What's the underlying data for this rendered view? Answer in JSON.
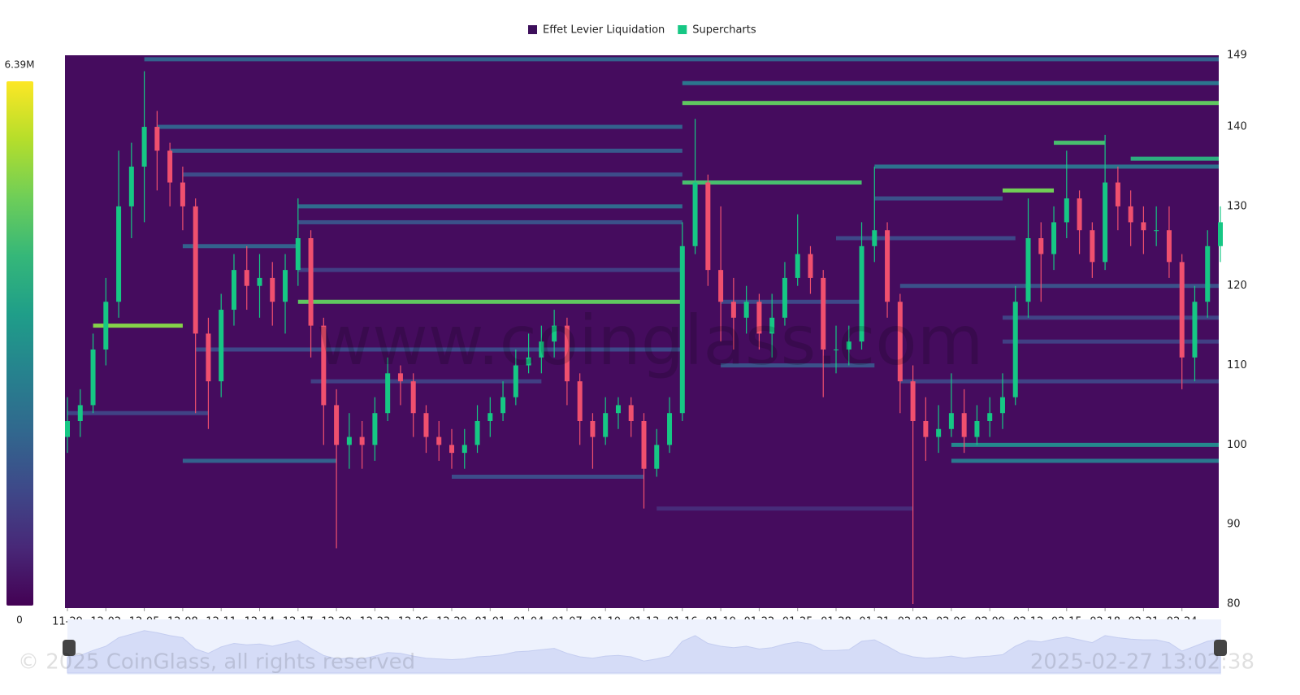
{
  "chart_data": {
    "type": "liquidation-heatmap",
    "legend": [
      {
        "name": "Effet Levier Liquidation",
        "color": "#3d0f5b"
      },
      {
        "name": "Supercharts",
        "color": "#16c784"
      }
    ],
    "watermark": "www.coinglass.com",
    "footer_left": "© 2025 CoinGlass, all rights reserved",
    "footer_right": "2025-02-27 13:02:38",
    "colorbar": {
      "min": 0,
      "max": {
        "value": 6390000,
        "label": "6.39M"
      }
    },
    "x": [
      "11-29",
      "11-30",
      "12-01",
      "12-02",
      "12-03",
      "12-04",
      "12-05",
      "12-06",
      "12-07",
      "12-08",
      "12-09",
      "12-10",
      "12-11",
      "12-12",
      "12-13",
      "12-14",
      "12-15",
      "12-16",
      "12-17",
      "12-18",
      "12-19",
      "12-20",
      "12-21",
      "12-22",
      "12-23",
      "12-24",
      "12-25",
      "12-26",
      "12-27",
      "12-28",
      "12-29",
      "12-30",
      "12-31",
      "01-01",
      "01-02",
      "01-03",
      "01-04",
      "01-05",
      "01-06",
      "01-07",
      "01-08",
      "01-09",
      "01-10",
      "01-11",
      "01-12",
      "01-13",
      "01-14",
      "01-15",
      "01-16",
      "01-17",
      "01-18",
      "01-19",
      "01-20",
      "01-21",
      "01-22",
      "01-23",
      "01-24",
      "01-25",
      "01-26",
      "01-27",
      "01-28",
      "01-29",
      "01-30",
      "01-31",
      "02-01",
      "02-02",
      "02-03",
      "02-04",
      "02-05",
      "02-06",
      "02-07",
      "02-08",
      "02-09",
      "02-10",
      "02-11",
      "02-12",
      "02-13",
      "02-14",
      "02-15",
      "02-16",
      "02-17",
      "02-18",
      "02-19",
      "02-20",
      "02-21",
      "02-22",
      "02-23",
      "02-24",
      "02-25",
      "02-26",
      "02-27"
    ],
    "xticks": [
      "11-29",
      "12-02",
      "12-05",
      "12-08",
      "12-11",
      "12-14",
      "12-17",
      "12-20",
      "12-23",
      "12-26",
      "12-29",
      "01-01",
      "01-04",
      "01-07",
      "01-10",
      "01-13",
      "01-16",
      "01-19",
      "01-22",
      "01-25",
      "01-28",
      "01-31",
      "02-03",
      "02-06",
      "02-09",
      "02-12",
      "02-15",
      "02-18",
      "02-21",
      "02-24"
    ],
    "ylim": [
      80,
      149
    ],
    "yticks": [
      80,
      90,
      100,
      110,
      120,
      130,
      140,
      149
    ],
    "up_color": "#16c784",
    "down_color": "#f0506e",
    "open": [
      101,
      103,
      105,
      112,
      118,
      130,
      135,
      140,
      137,
      133,
      130,
      114,
      108,
      117,
      122,
      120,
      121,
      118,
      122,
      126,
      115,
      105,
      100,
      101,
      100,
      104,
      109,
      108,
      104,
      101,
      100,
      99,
      100,
      103,
      104,
      106,
      110,
      111,
      113,
      115,
      108,
      103,
      101,
      104,
      105,
      103,
      97,
      100,
      104,
      125,
      133,
      122,
      118,
      116,
      118,
      114,
      116,
      121,
      124,
      121,
      112,
      112,
      113,
      125,
      127,
      118,
      108,
      103,
      101,
      102,
      104,
      101,
      103,
      104,
      106,
      118,
      126,
      124,
      128,
      131,
      127,
      123,
      133,
      130,
      128,
      127,
      127,
      123,
      111,
      118,
      125
    ],
    "high": [
      106,
      107,
      114,
      121,
      137,
      138,
      147,
      142,
      138,
      135,
      131,
      116,
      119,
      124,
      125,
      124,
      123,
      124,
      131,
      127,
      116,
      107,
      104,
      103,
      106,
      111,
      110,
      109,
      105,
      103,
      102,
      102,
      105,
      106,
      108,
      112,
      114,
      115,
      117,
      116,
      109,
      104,
      106,
      106,
      106,
      104,
      102,
      106,
      128,
      141,
      134,
      130,
      121,
      120,
      119,
      119,
      123,
      129,
      125,
      122,
      115,
      115,
      128,
      135,
      128,
      119,
      110,
      106,
      105,
      109,
      107,
      105,
      106,
      109,
      120,
      131,
      128,
      130,
      137,
      132,
      128,
      139,
      135,
      132,
      130,
      130,
      130,
      124,
      120,
      127,
      130
    ],
    "low": [
      99,
      101,
      104,
      110,
      116,
      126,
      128,
      132,
      130,
      127,
      104,
      102,
      106,
      115,
      117,
      116,
      115,
      114,
      120,
      111,
      100,
      87,
      97,
      97,
      98,
      103,
      105,
      101,
      99,
      98,
      97,
      97,
      99,
      101,
      103,
      105,
      109,
      109,
      111,
      105,
      100,
      97,
      100,
      102,
      101,
      92,
      96,
      99,
      103,
      124,
      120,
      113,
      112,
      114,
      112,
      111,
      115,
      120,
      119,
      106,
      109,
      110,
      112,
      123,
      116,
      104,
      80,
      98,
      99,
      101,
      99,
      100,
      101,
      102,
      105,
      116,
      118,
      122,
      126,
      124,
      121,
      122,
      127,
      125,
      124,
      125,
      121,
      107,
      108,
      116,
      123
    ],
    "close": [
      103,
      105,
      112,
      118,
      130,
      135,
      140,
      137,
      133,
      130,
      114,
      108,
      117,
      122,
      120,
      121,
      118,
      122,
      126,
      115,
      105,
      100,
      101,
      100,
      104,
      109,
      108,
      104,
      101,
      100,
      99,
      100,
      103,
      104,
      106,
      110,
      111,
      113,
      115,
      108,
      103,
      101,
      104,
      105,
      103,
      97,
      100,
      104,
      125,
      133,
      122,
      118,
      116,
      118,
      114,
      116,
      121,
      124,
      121,
      112,
      112,
      113,
      125,
      127,
      118,
      108,
      103,
      101,
      102,
      104,
      101,
      103,
      104,
      106,
      118,
      126,
      124,
      128,
      131,
      127,
      123,
      133,
      130,
      128,
      127,
      127,
      123,
      111,
      118,
      125,
      128
    ],
    "levels": [
      {
        "price": 115,
        "from": "12-01",
        "to": "12-08",
        "value": 5200000
      },
      {
        "price": 118,
        "from": "12-17",
        "to": "01-16",
        "value": 4800000
      },
      {
        "price": 133,
        "from": "01-16",
        "to": "01-30",
        "value": 4500000
      },
      {
        "price": 143,
        "from": "01-16",
        "to": "02-27",
        "value": 4800000
      },
      {
        "price": 145.5,
        "from": "01-16",
        "to": "02-27",
        "value": 2500000
      },
      {
        "price": 132,
        "from": "02-10",
        "to": "02-14",
        "value": 5000000
      },
      {
        "price": 136,
        "from": "02-20",
        "to": "02-27",
        "value": 4000000
      },
      {
        "price": 138,
        "from": "02-14",
        "to": "02-18",
        "value": 4500000
      },
      {
        "price": 148.5,
        "from": "12-05",
        "to": "02-27",
        "value": 2000000
      },
      {
        "price": 140,
        "from": "12-06",
        "to": "01-16",
        "value": 2000000
      },
      {
        "price": 137,
        "from": "12-07",
        "to": "01-16",
        "value": 1800000
      },
      {
        "price": 134,
        "from": "12-08",
        "to": "01-16",
        "value": 1500000
      },
      {
        "price": 130,
        "from": "12-17",
        "to": "01-16",
        "value": 2200000
      },
      {
        "price": 128,
        "from": "12-17",
        "to": "01-16",
        "value": 1600000
      },
      {
        "price": 125,
        "from": "12-08",
        "to": "12-17",
        "value": 2000000
      },
      {
        "price": 122,
        "from": "12-17",
        "to": "01-16",
        "value": 1200000
      },
      {
        "price": 112,
        "from": "12-09",
        "to": "01-16",
        "value": 1400000
      },
      {
        "price": 108,
        "from": "12-18",
        "to": "01-05",
        "value": 1200000
      },
      {
        "price": 98,
        "from": "12-08",
        "to": "12-20",
        "value": 2000000
      },
      {
        "price": 96,
        "from": "12-29",
        "to": "01-13",
        "value": 1500000
      },
      {
        "price": 135,
        "from": "01-31",
        "to": "02-27",
        "value": 2400000
      },
      {
        "price": 131,
        "from": "01-31",
        "to": "02-10",
        "value": 1600000
      },
      {
        "price": 120,
        "from": "02-02",
        "to": "02-27",
        "value": 1600000
      },
      {
        "price": 116,
        "from": "02-10",
        "to": "02-27",
        "value": 1300000
      },
      {
        "price": 113,
        "from": "02-10",
        "to": "02-27",
        "value": 1200000
      },
      {
        "price": 108,
        "from": "02-02",
        "to": "02-27",
        "value": 1300000
      },
      {
        "price": 100,
        "from": "02-06",
        "to": "02-27",
        "value": 3000000
      },
      {
        "price": 98,
        "from": "02-06",
        "to": "02-27",
        "value": 2600000
      },
      {
        "price": 126,
        "from": "01-28",
        "to": "02-11",
        "value": 1400000
      },
      {
        "price": 110,
        "from": "01-19",
        "to": "01-31",
        "value": 1600000
      },
      {
        "price": 118,
        "from": "01-19",
        "to": "01-30",
        "value": 1400000
      },
      {
        "price": 104,
        "from": "11-29",
        "to": "12-10",
        "value": 1300000
      },
      {
        "price": 92,
        "from": "01-14",
        "to": "02-03",
        "value": 800000
      }
    ]
  }
}
